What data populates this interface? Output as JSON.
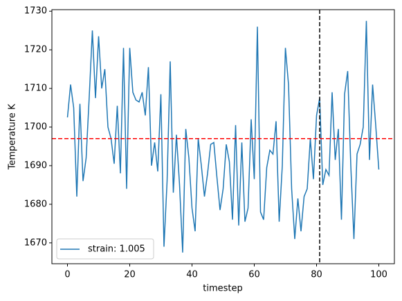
{
  "chart_data": {
    "type": "line",
    "xlabel": "timestep",
    "ylabel": "Temperature K",
    "x": [
      0,
      1,
      2,
      3,
      4,
      5,
      6,
      7,
      8,
      9,
      10,
      11,
      12,
      13,
      14,
      15,
      16,
      17,
      18,
      19,
      20,
      21,
      22,
      23,
      24,
      25,
      26,
      27,
      28,
      29,
      30,
      31,
      32,
      33,
      34,
      35,
      36,
      37,
      38,
      39,
      40,
      41,
      42,
      43,
      44,
      45,
      46,
      47,
      48,
      49,
      50,
      51,
      52,
      53,
      54,
      55,
      56,
      57,
      58,
      59,
      60,
      61,
      62,
      63,
      64,
      65,
      66,
      67,
      68,
      69,
      70,
      71,
      72,
      73,
      74,
      75,
      76,
      77,
      78,
      79,
      80,
      81,
      82,
      83,
      84,
      85,
      86,
      87,
      88,
      89,
      90,
      91,
      92,
      93,
      94,
      95,
      96,
      97,
      98,
      99,
      100
    ],
    "series": [
      {
        "name": "strain: 1.005",
        "color": "#1f77b4",
        "values": [
          1702.5,
          1711,
          1705,
          1682,
          1706,
          1686,
          1692,
          1708,
          1725,
          1707.5,
          1723.5,
          1710,
          1715,
          1700,
          1697,
          1690.5,
          1705.5,
          1688,
          1720.5,
          1684,
          1720.5,
          1709,
          1707,
          1706.5,
          1709,
          1703,
          1715.5,
          1690,
          1696,
          1688.5,
          1708.5,
          1669,
          1686,
          1717,
          1683,
          1698,
          1685,
          1667.5,
          1699.5,
          1692,
          1679,
          1673,
          1697,
          1690,
          1682,
          1688,
          1695.5,
          1696,
          1687,
          1678.5,
          1684,
          1695.5,
          1691,
          1676,
          1700.5,
          1674.5,
          1696,
          1675.5,
          1679,
          1702,
          1686.5,
          1726,
          1678,
          1676,
          1689.5,
          1694,
          1693,
          1701.5,
          1675.5,
          1690,
          1720.5,
          1711,
          1684,
          1671,
          1681.5,
          1673,
          1682,
          1684,
          1697,
          1686.5,
          1703,
          1707.5,
          1685,
          1689,
          1687.5,
          1709,
          1691.5,
          1699.5,
          1676,
          1708.5,
          1714.5,
          1690,
          1671,
          1693,
          1695.5,
          1700,
          1727.5,
          1691.5,
          1711,
          1700.5,
          1689
        ]
      }
    ],
    "reference_lines": [
      {
        "axis": "y",
        "value": 1697,
        "color": "#ff0000"
      },
      {
        "axis": "x",
        "value": 81,
        "color": "#000000"
      }
    ],
    "xlim": [
      -5,
      105
    ],
    "ylim": [
      1664.6,
      1730.4
    ],
    "xticks": [
      0,
      20,
      40,
      60,
      80,
      100
    ],
    "yticks": [
      1670,
      1680,
      1690,
      1700,
      1710,
      1720,
      1730
    ],
    "legend": "lower left"
  }
}
